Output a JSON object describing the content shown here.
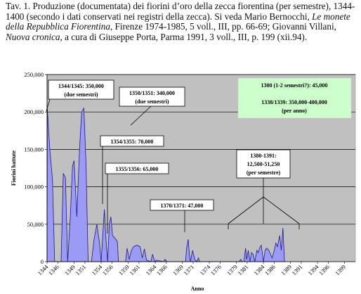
{
  "caption": {
    "p1": "Tav. 1. Produzione (documentata) dei fiorini d’oro della zecca fiorentina (per semestre), 1344-1400 (secondo i dati conservati nei registri della zecca). Si veda Mario Bernocchi, ",
    "i1": "Le monete della Repubblica Fiorentina",
    "p2": ", Firenze 1974-1985, 5 voll., III, pp. 66-69; Giovanni Villani, ",
    "i2": "Nuova cronica",
    "p3": ", a cura di Giuseppe Porta, Parma 1991, 3 voll., III, p. 199 (xii.94)."
  },
  "chart_data": {
    "type": "area",
    "title": "",
    "xlabel": "Anno",
    "ylabel": "Fiorini battute",
    "ylim": [
      0,
      250000
    ],
    "y_ticks": [
      "0",
      "50,000",
      "100,000",
      "150,000",
      "200,000",
      "250,000"
    ],
    "x_range": [
      1344,
      1401
    ],
    "x_tick_labels": [
      "1344",
      "1346",
      "1349",
      "1351",
      "1354",
      "1356",
      "1359",
      "1361",
      "1364",
      "1366",
      "1369",
      "1371",
      "1374",
      "1376",
      "1379",
      "1381",
      "1384",
      "1386",
      "1389",
      "1391",
      "1394",
      "1396",
      "1399"
    ],
    "grid": "horizontal",
    "colors": {
      "plot_bg": "#c0c0c0",
      "fill": "#9b9bf5",
      "stroke": "#1a1a8c",
      "note_bg": "#ccffcc"
    },
    "series": [
      {
        "points": [
          [
            1344.0,
            0
          ],
          [
            1344.05,
            205000
          ],
          [
            1344.5,
            150000
          ],
          [
            1345.0,
            110000
          ],
          [
            1345.4,
            0
          ],
          [
            1346.6,
            0
          ],
          [
            1347.0,
            118000
          ],
          [
            1347.4,
            112000
          ],
          [
            1347.8,
            0
          ],
          [
            1348.3,
            60000
          ],
          [
            1348.7,
            128000
          ],
          [
            1349.0,
            135000
          ],
          [
            1349.5,
            60000
          ],
          [
            1350.0,
            150000
          ],
          [
            1350.4,
            200000
          ],
          [
            1350.8,
            205000
          ],
          [
            1351.2,
            130000
          ],
          [
            1351.6,
            0
          ],
          [
            1352.2,
            0
          ],
          [
            1352.7,
            30000
          ],
          [
            1353.2,
            50000
          ],
          [
            1353.7,
            25000
          ],
          [
            1354.0,
            0
          ],
          [
            1354.3,
            35000
          ],
          [
            1354.6,
            70000
          ],
          [
            1354.9,
            30000
          ],
          [
            1355.2,
            0
          ],
          [
            1355.5,
            50000
          ],
          [
            1355.8,
            60000
          ],
          [
            1356.1,
            35000
          ],
          [
            1356.7,
            30000
          ],
          [
            1357.0,
            27000
          ],
          [
            1357.2,
            0
          ],
          [
            1358.5,
            0
          ],
          [
            1358.8,
            18000
          ],
          [
            1359.2,
            3000
          ],
          [
            1359.6,
            15000
          ],
          [
            1360.0,
            20000
          ],
          [
            1360.6,
            22000
          ],
          [
            1361.2,
            20000
          ],
          [
            1361.6,
            5000
          ],
          [
            1362.0,
            17000
          ],
          [
            1362.4,
            2000
          ],
          [
            1363.2,
            0
          ],
          [
            1363.5,
            10000
          ],
          [
            1363.9,
            0
          ],
          [
            1364.2,
            2000
          ],
          [
            1365.5,
            0
          ],
          [
            1365.8,
            3000
          ],
          [
            1366.2,
            0
          ],
          [
            1369.6,
            0
          ],
          [
            1369.8,
            18000
          ],
          [
            1370.1,
            30000
          ],
          [
            1370.3,
            10000
          ],
          [
            1370.5,
            0
          ],
          [
            1370.9,
            15000
          ],
          [
            1371.3,
            3000
          ],
          [
            1371.7,
            0
          ],
          [
            1372.0,
            5000
          ],
          [
            1372.2,
            0
          ],
          [
            1379.5,
            0
          ],
          [
            1379.8,
            3000
          ],
          [
            1380.1,
            0
          ],
          [
            1380.4,
            0
          ],
          [
            1380.7,
            18000
          ],
          [
            1380.9,
            3000
          ],
          [
            1381.2,
            15000
          ],
          [
            1381.5,
            0
          ],
          [
            1381.8,
            12000
          ],
          [
            1382.1,
            10000
          ],
          [
            1382.4,
            0
          ],
          [
            1382.8,
            15000
          ],
          [
            1383.0,
            12000
          ],
          [
            1383.3,
            18000
          ],
          [
            1383.6,
            22000
          ],
          [
            1384.0,
            0
          ],
          [
            1384.3,
            15000
          ],
          [
            1384.6,
            18000
          ],
          [
            1385.0,
            15000
          ],
          [
            1385.3,
            10000
          ],
          [
            1385.6,
            5000
          ],
          [
            1386.0,
            15000
          ],
          [
            1386.3,
            25000
          ],
          [
            1386.6,
            20000
          ],
          [
            1387.0,
            35000
          ],
          [
            1387.3,
            15000
          ],
          [
            1387.6,
            45000
          ],
          [
            1387.9,
            0
          ]
        ]
      }
    ],
    "annotations": [
      {
        "text": [
          "1344/1345: 350,000",
          "(due semestri)"
        ],
        "year": 1344
      },
      {
        "text": [
          "1350/1351: 340,000",
          "(due semestri)"
        ],
        "year": 1350.5
      },
      {
        "text": [
          "1354/1355: 70,000"
        ],
        "year": 1354.6
      },
      {
        "text": [
          "1355/1356: 65,000"
        ],
        "year": 1355.6
      },
      {
        "text": [
          "1370/1371: 47,000"
        ],
        "year": 1370.1
      },
      {
        "text": [
          "1380-1391:",
          "12,500-51,250",
          "(per semestre)"
        ],
        "years": [
          1378.5,
          1384.5,
          1389.5
        ]
      }
    ],
    "note": [
      "1300 (1-2 semestri?): 45,000",
      "1338/1339: 350,000-400,000",
      "(per anno)"
    ]
  }
}
